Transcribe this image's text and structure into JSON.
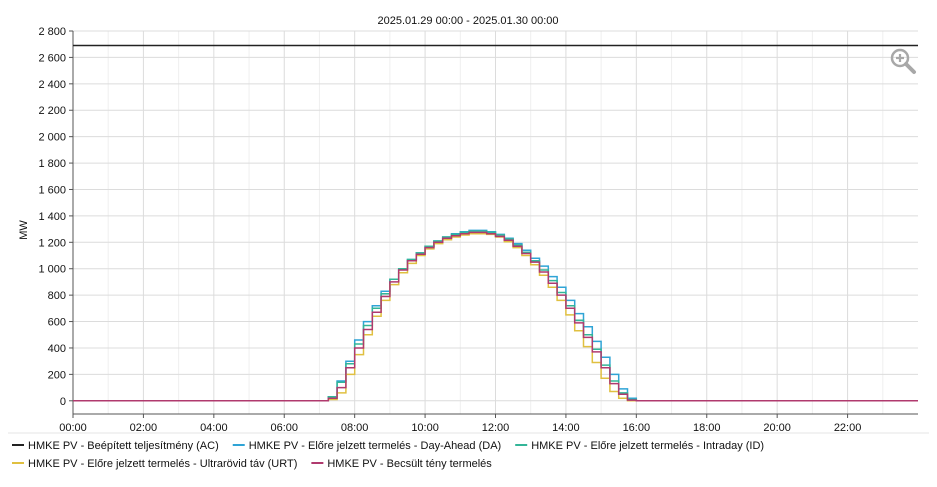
{
  "chart_data": {
    "type": "line",
    "title": "2025.01.29 00:00 - 2025.01.30 00:00",
    "ylabel": "MW",
    "xlabel": "",
    "ylim": [
      -100,
      2800
    ],
    "xlim": [
      0,
      24
    ],
    "grid": true,
    "legend_placement": "bottom",
    "y_ticks": [
      {
        "value": 0,
        "label": "0"
      },
      {
        "value": 200,
        "label": "200"
      },
      {
        "value": 400,
        "label": "400"
      },
      {
        "value": 600,
        "label": "600"
      },
      {
        "value": 800,
        "label": "800"
      },
      {
        "value": 1000,
        "label": "1 000"
      },
      {
        "value": 1200,
        "label": "1 200"
      },
      {
        "value": 1400,
        "label": "1 400"
      },
      {
        "value": 1600,
        "label": "1 600"
      },
      {
        "value": 1800,
        "label": "1 800"
      },
      {
        "value": 2000,
        "label": "2 000"
      },
      {
        "value": 2200,
        "label": "2 200"
      },
      {
        "value": 2400,
        "label": "2 400"
      },
      {
        "value": 2600,
        "label": "2 600"
      },
      {
        "value": 2800,
        "label": "2 800"
      }
    ],
    "x_ticks": [
      {
        "value": 0,
        "label": "00:00"
      },
      {
        "value": 2,
        "label": "02:00"
      },
      {
        "value": 4,
        "label": "04:00"
      },
      {
        "value": 6,
        "label": "06:00"
      },
      {
        "value": 8,
        "label": "08:00"
      },
      {
        "value": 10,
        "label": "10:00"
      },
      {
        "value": 12,
        "label": "12:00"
      },
      {
        "value": 14,
        "label": "14:00"
      },
      {
        "value": 16,
        "label": "16:00"
      },
      {
        "value": 18,
        "label": "18:00"
      },
      {
        "value": 20,
        "label": "20:00"
      },
      {
        "value": 22,
        "label": "22:00"
      }
    ],
    "series": [
      {
        "name": "HMKE PV - Beépített teljesítmény (AC)",
        "color": "#222222",
        "step": false,
        "x": [
          0,
          24
        ],
        "values": [
          2690,
          2690
        ]
      },
      {
        "name": "HMKE PV - Előre jelzett termelés - Day-Ahead (DA)",
        "color": "#2fa4d6",
        "step": true,
        "x": [
          0,
          7.25,
          7.5,
          7.75,
          8.0,
          8.25,
          8.5,
          8.75,
          9.0,
          9.25,
          9.5,
          9.75,
          10.0,
          10.25,
          10.5,
          10.75,
          11.0,
          11.25,
          11.5,
          11.75,
          12.0,
          12.25,
          12.5,
          12.75,
          13.0,
          13.25,
          13.5,
          13.75,
          14.0,
          14.25,
          14.5,
          14.75,
          15.0,
          15.25,
          15.5,
          15.75,
          16.0,
          16.25,
          16.5,
          16.75,
          24
        ],
        "values": [
          0,
          30,
          150,
          300,
          460,
          600,
          720,
          830,
          920,
          1000,
          1070,
          1120,
          1170,
          1210,
          1240,
          1265,
          1280,
          1290,
          1290,
          1280,
          1260,
          1230,
          1190,
          1140,
          1080,
          1020,
          940,
          860,
          760,
          660,
          560,
          450,
          330,
          200,
          90,
          20,
          0,
          0,
          0,
          0,
          0
        ]
      },
      {
        "name": "HMKE PV - Előre jelzett termelés - Intraday (ID)",
        "color": "#33b598",
        "step": true,
        "x": [
          0,
          7.25,
          7.5,
          7.75,
          8.0,
          8.25,
          8.5,
          8.75,
          9.0,
          9.25,
          9.5,
          9.75,
          10.0,
          10.25,
          10.5,
          10.75,
          11.0,
          11.25,
          11.5,
          11.75,
          12.0,
          12.25,
          12.5,
          12.75,
          13.0,
          13.25,
          13.5,
          13.75,
          14.0,
          14.25,
          14.5,
          14.75,
          15.0,
          15.25,
          15.5,
          15.75,
          16.0,
          16.25,
          16.5,
          16.75,
          24
        ],
        "values": [
          0,
          30,
          140,
          280,
          430,
          570,
          700,
          810,
          920,
          1000,
          1070,
          1120,
          1170,
          1210,
          1240,
          1260,
          1275,
          1285,
          1285,
          1275,
          1255,
          1225,
          1180,
          1125,
          1060,
          990,
          910,
          820,
          720,
          610,
          500,
          390,
          270,
          150,
          60,
          10,
          0,
          0,
          0,
          0,
          0
        ]
      },
      {
        "name": "HMKE PV - Előre jelzett termelés - Ultrarövid táv (URT)",
        "color": "#e0c040",
        "step": true,
        "x": [
          0,
          7.25,
          7.5,
          7.75,
          8.0,
          8.25,
          8.5,
          8.75,
          9.0,
          9.25,
          9.5,
          9.75,
          10.0,
          10.25,
          10.5,
          10.75,
          11.0,
          11.25,
          11.5,
          11.75,
          12.0,
          12.25,
          12.5,
          12.75,
          13.0,
          13.25,
          13.5,
          13.75,
          14.0,
          14.25,
          14.5,
          14.75,
          15.0,
          15.25,
          15.5,
          15.75,
          16.0,
          16.25,
          16.5,
          16.75,
          24
        ],
        "values": [
          0,
          10,
          60,
          200,
          350,
          500,
          640,
          760,
          880,
          970,
          1040,
          1100,
          1150,
          1190,
          1220,
          1240,
          1255,
          1265,
          1265,
          1260,
          1240,
          1205,
          1160,
          1100,
          1030,
          950,
          860,
          760,
          650,
          530,
          410,
          290,
          170,
          70,
          20,
          0,
          0,
          0,
          0,
          0,
          0
        ]
      },
      {
        "name": "HMKE PV - Becsült tény termelés",
        "color": "#b03a6e",
        "step": true,
        "x": [
          0,
          7.25,
          7.5,
          7.75,
          8.0,
          8.25,
          8.5,
          8.75,
          9.0,
          9.25,
          9.5,
          9.75,
          10.0,
          10.25,
          10.5,
          10.75,
          11.0,
          11.25,
          11.5,
          11.75,
          12.0,
          12.25,
          12.5,
          12.75,
          13.0,
          13.25,
          13.5,
          13.75,
          14.0,
          14.25,
          14.5,
          14.75,
          15.0,
          15.25,
          15.5,
          15.75,
          16.0,
          16.25,
          16.5,
          16.75,
          24
        ],
        "values": [
          0,
          20,
          100,
          250,
          400,
          540,
          670,
          790,
          900,
          990,
          1060,
          1110,
          1160,
          1200,
          1230,
          1250,
          1265,
          1275,
          1275,
          1265,
          1245,
          1215,
          1170,
          1115,
          1050,
          975,
          890,
          800,
          700,
          590,
          480,
          370,
          250,
          130,
          50,
          5,
          0,
          0,
          0,
          0,
          0
        ]
      }
    ]
  }
}
